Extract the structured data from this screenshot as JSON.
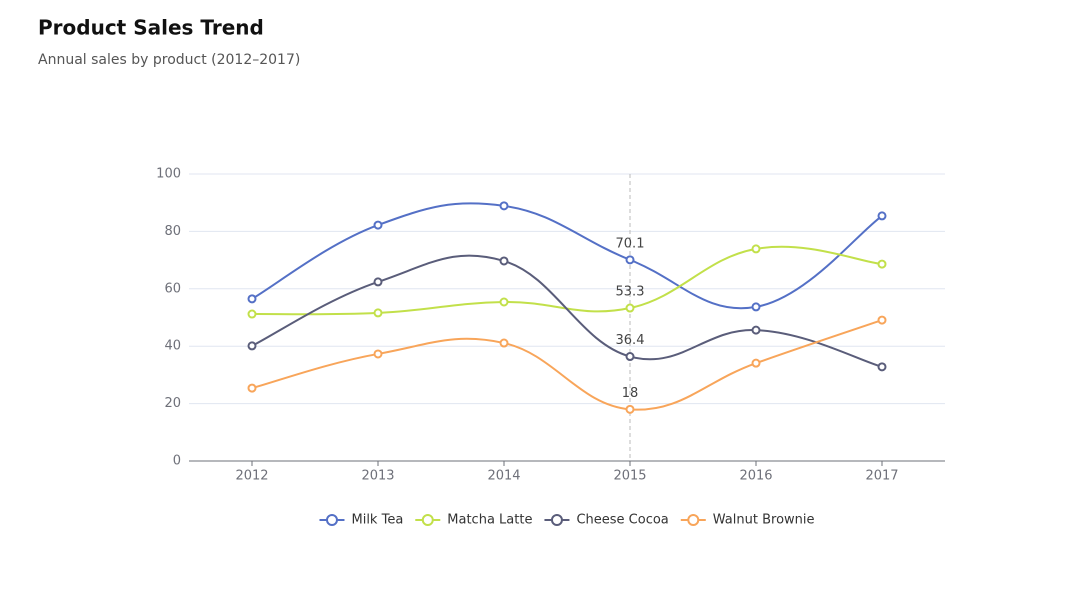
{
  "chart_data": {
    "type": "line",
    "title": "Product Sales Trend",
    "subtitle": "Annual sales by product (2012–2017)",
    "categories": [
      "2012",
      "2013",
      "2014",
      "2015",
      "2016",
      "2017"
    ],
    "series": [
      {
        "name": "Milk Tea",
        "color": "#5470c6",
        "values": [
          56.5,
          82.2,
          88.9,
          70.1,
          53.7,
          85.4
        ]
      },
      {
        "name": "Matcha Latte",
        "color": "#c2e04a",
        "values": [
          51.2,
          51.6,
          55.4,
          53.3,
          73.9,
          68.6
        ]
      },
      {
        "name": "Cheese Cocoa",
        "color": "#5a5d7a",
        "values": [
          40.1,
          62.4,
          69.7,
          36.4,
          45.6,
          32.8
        ]
      },
      {
        "name": "Walnut Brownie",
        "color": "#f8a55a",
        "values": [
          25.4,
          37.3,
          41.1,
          18,
          34.1,
          49.1
        ]
      }
    ],
    "ylim": [
      0,
      100
    ],
    "yticks": [
      0,
      20,
      40,
      60,
      80,
      100
    ],
    "grid": true
  }
}
